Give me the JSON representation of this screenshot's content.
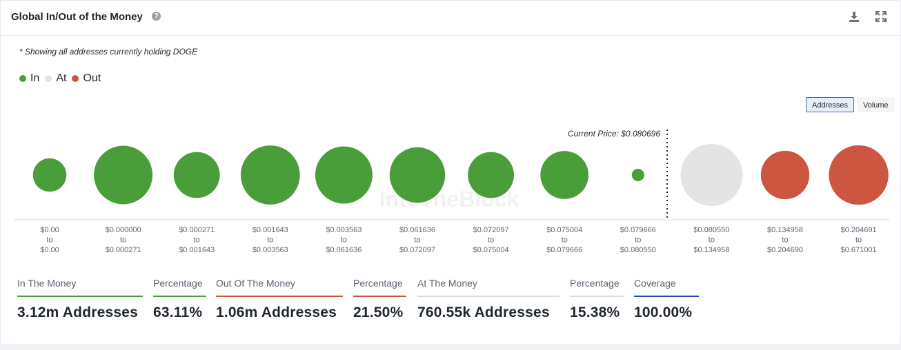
{
  "header": {
    "title": "Global In/Out of the Money",
    "help_icon": "question-circle-icon",
    "download_icon": "download-icon",
    "expand_icon": "expand-icon"
  },
  "note": "* Showing all addresses currently holding DOGE",
  "legend": [
    {
      "label": "In",
      "color": "#4a9e3a"
    },
    {
      "label": "At",
      "color": "#e4e4e4"
    },
    {
      "label": "Out",
      "color": "#cc5640"
    }
  ],
  "toggle": {
    "active": "Addresses",
    "inactive": "Volume"
  },
  "watermark": "IntoTheBlock",
  "chart_data": {
    "type": "bubble",
    "current_price_label": "Current Price: $0.080696",
    "current_price": 0.080696,
    "categories": [
      {
        "from": "$0.00",
        "to": "$0.00",
        "status": "in",
        "relative_size": 0.29
      },
      {
        "from": "$0.000000",
        "to": "$0.000271",
        "status": "in",
        "relative_size": 0.89
      },
      {
        "from": "$0.000271",
        "to": "$0.001643",
        "status": "in",
        "relative_size": 0.55
      },
      {
        "from": "$0.001643",
        "to": "$0.003563",
        "status": "in",
        "relative_size": 0.91
      },
      {
        "from": "$0.003563",
        "to": "$0.061636",
        "status": "in",
        "relative_size": 0.85
      },
      {
        "from": "$0.061636",
        "to": "$0.072097",
        "status": "in",
        "relative_size": 0.8
      },
      {
        "from": "$0.072097",
        "to": "$0.075004",
        "status": "in",
        "relative_size": 0.55
      },
      {
        "from": "$0.075004",
        "to": "$0.079666",
        "status": "in",
        "relative_size": 0.6
      },
      {
        "from": "$0.079666",
        "to": "$0.080550",
        "status": "in",
        "relative_size": 0.015
      },
      {
        "from": "$0.080550",
        "to": "$0.134958",
        "status": "at",
        "relative_size": 1.0
      },
      {
        "from": "$0.134958",
        "to": "$0.204690",
        "status": "out",
        "relative_size": 0.61
      },
      {
        "from": "$0.204691",
        "to": "$0.671001",
        "status": "out",
        "relative_size": 0.92
      }
    ],
    "colors": {
      "in": "#4a9e3a",
      "at": "#e4e4e4",
      "out": "#cc5640"
    },
    "range_connector": "to"
  },
  "stats": [
    {
      "label": "In The Money",
      "value": "3.12m Addresses",
      "bar_color": "#4a9e3a"
    },
    {
      "label": "Percentage",
      "value": "63.11%",
      "bar_color": "#4a9e3a"
    },
    {
      "label": "Out Of The Money",
      "value": "1.06m Addresses",
      "bar_color": "#cc5640"
    },
    {
      "label": "Percentage",
      "value": "21.50%",
      "bar_color": "#cc5640"
    },
    {
      "label": "At The Money",
      "value": "760.55k Addresses",
      "bar_color": "#dcdcdc"
    },
    {
      "label": "Percentage",
      "value": "15.38%",
      "bar_color": "#dcdcdc"
    },
    {
      "label": "Coverage",
      "value": "100.00%",
      "bar_color": "#2b45c9"
    }
  ]
}
